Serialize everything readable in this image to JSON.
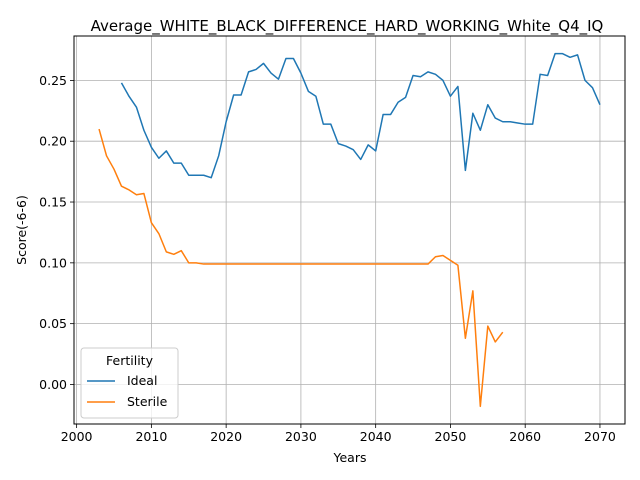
{
  "chart_data": {
    "type": "line",
    "title": "Average_WHITE_BLACK_DIFFERENCE_HARD_WORKING_White_Q4_IQ",
    "xlabel": "Years",
    "ylabel": "Score(-6-6)",
    "xlim": [
      1999.65,
      2073.35
    ],
    "ylim": [
      -0.0325,
      0.2865
    ],
    "xticks": [
      2000,
      2010,
      2020,
      2030,
      2040,
      2050,
      2060,
      2070
    ],
    "yticks": [
      0.0,
      0.05,
      0.1,
      0.15,
      0.2,
      0.25
    ],
    "ytick_labels": [
      "0.00",
      "0.05",
      "0.10",
      "0.15",
      "0.20",
      "0.25"
    ],
    "grid": true,
    "legend": {
      "title": "Fertility",
      "placement": "lower-left"
    },
    "series": [
      {
        "name": "Ideal",
        "color": "#1f77b4",
        "x": [
          2006,
          2007,
          2008,
          2009,
          2010,
          2011,
          2012,
          2013,
          2014,
          2015,
          2016,
          2017,
          2018,
          2019,
          2020,
          2021,
          2022,
          2023,
          2024,
          2025,
          2026,
          2027,
          2028,
          2029,
          2030,
          2031,
          2032,
          2033,
          2034,
          2035,
          2036,
          2037,
          2038,
          2039,
          2040,
          2041,
          2042,
          2043,
          2044,
          2045,
          2046,
          2047,
          2048,
          2049,
          2050,
          2051,
          2052,
          2053,
          2054,
          2055,
          2056,
          2057,
          2058,
          2059,
          2060,
          2061,
          2062,
          2063,
          2064,
          2065,
          2066,
          2067,
          2068,
          2069,
          2070
        ],
        "values": [
          0.248,
          0.237,
          0.228,
          0.209,
          0.195,
          0.186,
          0.192,
          0.182,
          0.182,
          0.172,
          0.172,
          0.172,
          0.17,
          0.188,
          0.216,
          0.238,
          0.238,
          0.257,
          0.259,
          0.264,
          0.256,
          0.251,
          0.268,
          0.268,
          0.256,
          0.241,
          0.237,
          0.214,
          0.214,
          0.198,
          0.196,
          0.193,
          0.185,
          0.197,
          0.192,
          0.222,
          0.222,
          0.232,
          0.236,
          0.254,
          0.253,
          0.257,
          0.255,
          0.25,
          0.237,
          0.245,
          0.176,
          0.223,
          0.209,
          0.23,
          0.219,
          0.216,
          0.216,
          0.215,
          0.214,
          0.214,
          0.255,
          0.254,
          0.272,
          0.272,
          0.269,
          0.271,
          0.25,
          0.244,
          0.23
        ]
      },
      {
        "name": "Sterile",
        "color": "#ff7f0e",
        "x": [
          2003,
          2004,
          2005,
          2006,
          2007,
          2008,
          2009,
          2010,
          2011,
          2012,
          2013,
          2014,
          2015,
          2016,
          2017,
          2018,
          2019,
          2020,
          2021,
          2022,
          2023,
          2024,
          2025,
          2026,
          2027,
          2028,
          2029,
          2030,
          2031,
          2032,
          2033,
          2034,
          2035,
          2036,
          2037,
          2038,
          2039,
          2040,
          2041,
          2042,
          2043,
          2044,
          2045,
          2046,
          2047,
          2048,
          2049,
          2050,
          2051,
          2052,
          2053,
          2054,
          2055,
          2056,
          2057
        ],
        "values": [
          0.21,
          0.188,
          0.177,
          0.163,
          0.16,
          0.156,
          0.157,
          0.133,
          0.124,
          0.109,
          0.107,
          0.11,
          0.1,
          0.1,
          0.099,
          0.099,
          0.099,
          0.099,
          0.099,
          0.099,
          0.099,
          0.099,
          0.099,
          0.099,
          0.099,
          0.099,
          0.099,
          0.099,
          0.099,
          0.099,
          0.099,
          0.099,
          0.099,
          0.099,
          0.099,
          0.099,
          0.099,
          0.099,
          0.099,
          0.099,
          0.099,
          0.099,
          0.099,
          0.099,
          0.099,
          0.105,
          0.106,
          0.102,
          0.098,
          0.038,
          0.077,
          -0.018,
          0.048,
          0.035,
          0.043
        ]
      }
    ]
  }
}
